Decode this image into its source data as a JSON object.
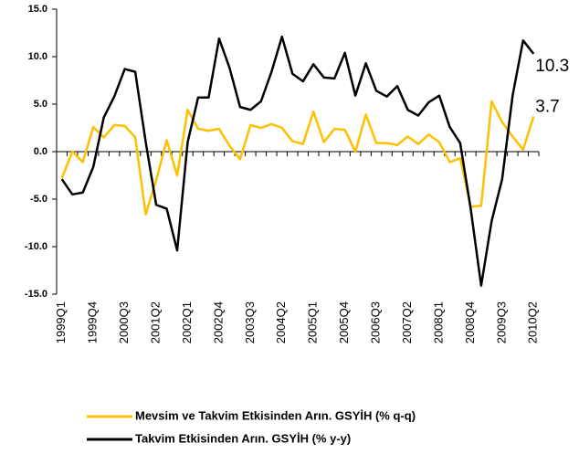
{
  "chart_data": {
    "type": "line",
    "categories": [
      "1999Q1",
      null,
      null,
      "1999Q4",
      null,
      null,
      "2000Q3",
      null,
      null,
      "2001Q2",
      null,
      null,
      "2002Q1",
      null,
      null,
      "2002Q4",
      null,
      null,
      "2003Q3",
      null,
      null,
      "2004Q2",
      null,
      null,
      "2005Q1",
      null,
      null,
      "2005Q4",
      null,
      null,
      "2006Q3",
      null,
      null,
      "2007Q2",
      null,
      null,
      "2008Q1",
      null,
      null,
      "2008Q4",
      null,
      null,
      "2009Q3",
      null,
      null,
      "2010Q2"
    ],
    "series": [
      {
        "name": "Mevsim ve Takvim Etkisinden Arın. GSYİH (% q-q)",
        "color": "#ffc000",
        "values": [
          -2.8,
          0.0,
          -1.1,
          2.6,
          1.5,
          2.8,
          2.7,
          1.5,
          -6.6,
          -3.0,
          1.2,
          -2.5,
          4.4,
          2.4,
          2.2,
          2.4,
          0.6,
          -0.8,
          2.8,
          2.5,
          2.9,
          2.5,
          1.1,
          0.8,
          4.2,
          1.0,
          2.4,
          2.3,
          0.0,
          3.9,
          0.9,
          0.9,
          0.7,
          1.6,
          0.8,
          1.8,
          1.0,
          -1.1,
          -0.7,
          -5.8,
          -5.7,
          5.3,
          3.1,
          1.6,
          0.2,
          3.7
        ]
      },
      {
        "name": "Takvim Etkisinden Arın. GSYİH (% y-y)",
        "color": "#000000",
        "values": [
          -2.9,
          -4.5,
          -4.3,
          -1.6,
          3.6,
          5.8,
          8.7,
          8.4,
          1.0,
          -5.6,
          -6.0,
          -10.4,
          1.0,
          5.7,
          5.7,
          11.9,
          8.8,
          4.7,
          4.4,
          5.3,
          8.4,
          12.1,
          8.2,
          7.4,
          9.2,
          7.8,
          7.7,
          10.4,
          5.9,
          9.3,
          6.4,
          5.8,
          6.9,
          4.4,
          3.8,
          5.2,
          5.9,
          2.6,
          0.9,
          -6.0,
          -14.1,
          -7.3,
          -2.9,
          5.9,
          11.7,
          10.3
        ]
      }
    ],
    "ylim": [
      -15,
      15
    ],
    "yticks": [
      {
        "value": -15,
        "label": "-15.0"
      },
      {
        "value": -10,
        "label": "-10.0"
      },
      {
        "value": -5,
        "label": "-5.0"
      },
      {
        "value": 0,
        "label": "0.0"
      },
      {
        "value": 5,
        "label": "5.0"
      },
      {
        "value": 10,
        "label": "10.0"
      },
      {
        "value": 15,
        "label": "15.0"
      }
    ],
    "legend": "bottom"
  }
}
